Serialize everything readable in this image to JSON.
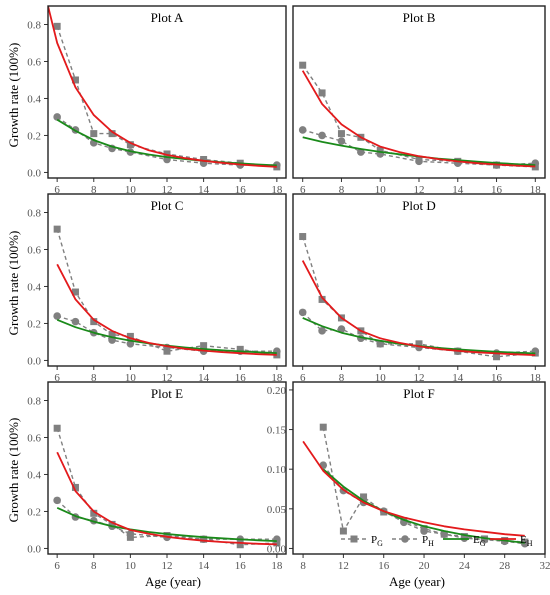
{
  "figure": {
    "ylabel": "Growth rate (100%)",
    "xlabel": "Age (year)"
  },
  "colors": {
    "P_G": "#808080",
    "P_H": "#808080",
    "E_G": "#1a8a1a",
    "E_H": "#e31a1c"
  },
  "legend": {
    "items": [
      {
        "key": "P_G",
        "base": "P",
        "sub": "G",
        "style": "dashed-square"
      },
      {
        "key": "P_H",
        "base": "P",
        "sub": "H",
        "style": "dashed-circle"
      },
      {
        "key": "E_G",
        "base": "E",
        "sub": "G",
        "style": "solid-green"
      },
      {
        "key": "E_H",
        "base": "E",
        "sub": "H",
        "style": "solid-red"
      }
    ]
  },
  "chart_data": [
    {
      "type": "line",
      "title": "Plot A",
      "xlim": [
        5.5,
        18.5
      ],
      "ylim": [
        -0.03,
        0.9
      ],
      "xticks": [
        6,
        8,
        10,
        12,
        14,
        16,
        18
      ],
      "yticks": [
        0.0,
        0.2,
        0.4,
        0.6,
        0.8
      ],
      "ytick_labels": [
        "0.0",
        "0.2",
        "0.4",
        "0.6",
        "0.8"
      ],
      "series": [
        {
          "name": "P_G",
          "x": [
            6,
            7,
            8,
            9,
            10,
            12,
            14,
            16,
            18
          ],
          "y": [
            0.79,
            0.5,
            0.21,
            0.21,
            0.15,
            0.1,
            0.07,
            0.05,
            0.03
          ]
        },
        {
          "name": "P_H",
          "x": [
            6,
            7,
            8,
            9,
            10,
            12,
            14,
            16,
            18
          ],
          "y": [
            0.3,
            0.23,
            0.16,
            0.13,
            0.11,
            0.07,
            0.05,
            0.04,
            0.04
          ]
        },
        {
          "name": "E_G",
          "x": [
            6,
            7,
            8,
            9,
            10,
            11,
            12,
            13,
            14,
            15,
            16,
            17,
            18
          ],
          "y": [
            0.285,
            0.225,
            0.175,
            0.14,
            0.115,
            0.097,
            0.083,
            0.072,
            0.063,
            0.055,
            0.049,
            0.043,
            0.038
          ]
        },
        {
          "name": "E_H",
          "x": [
            5.5,
            6,
            7,
            8,
            9,
            10,
            11,
            12,
            13,
            14,
            15,
            16,
            17,
            18
          ],
          "y": [
            0.9,
            0.7,
            0.46,
            0.31,
            0.22,
            0.16,
            0.12,
            0.095,
            0.077,
            0.063,
            0.052,
            0.043,
            0.036,
            0.03
          ]
        }
      ]
    },
    {
      "type": "line",
      "title": "Plot B",
      "xlim": [
        5.5,
        18.5
      ],
      "ylim": [
        -0.03,
        0.9
      ],
      "xticks": [
        6,
        8,
        10,
        12,
        14,
        16,
        18
      ],
      "yticks": [],
      "ytick_labels": [],
      "series": [
        {
          "name": "P_G",
          "x": [
            6,
            7,
            8,
            9,
            10,
            12,
            14,
            16,
            18
          ],
          "y": [
            0.58,
            0.43,
            0.21,
            0.19,
            0.12,
            0.07,
            0.06,
            0.04,
            0.03
          ]
        },
        {
          "name": "P_H",
          "x": [
            6,
            7,
            8,
            9,
            10,
            12,
            14,
            16,
            18
          ],
          "y": [
            0.23,
            0.2,
            0.17,
            0.11,
            0.1,
            0.06,
            0.05,
            0.04,
            0.05
          ]
        },
        {
          "name": "E_G",
          "x": [
            6,
            7,
            8,
            9,
            10,
            11,
            12,
            13,
            14,
            15,
            16,
            17,
            18
          ],
          "y": [
            0.19,
            0.165,
            0.145,
            0.127,
            0.111,
            0.098,
            0.086,
            0.075,
            0.066,
            0.058,
            0.051,
            0.045,
            0.04
          ]
        },
        {
          "name": "E_H",
          "x": [
            6,
            7,
            8,
            9,
            10,
            11,
            12,
            13,
            14,
            15,
            16,
            17,
            18
          ],
          "y": [
            0.55,
            0.37,
            0.26,
            0.19,
            0.14,
            0.11,
            0.088,
            0.072,
            0.06,
            0.05,
            0.043,
            0.037,
            0.032
          ]
        }
      ]
    },
    {
      "type": "line",
      "title": "Plot C",
      "xlim": [
        5.5,
        18.5
      ],
      "ylim": [
        -0.03,
        0.9
      ],
      "xticks": [
        6,
        8,
        10,
        12,
        14,
        16,
        18
      ],
      "yticks": [
        0.0,
        0.2,
        0.4,
        0.6,
        0.8
      ],
      "ytick_labels": [
        "0.0",
        "0.2",
        "0.4",
        "0.6",
        "0.8"
      ],
      "series": [
        {
          "name": "P_G",
          "x": [
            6,
            7,
            8,
            9,
            10,
            12,
            14,
            16,
            18
          ],
          "y": [
            0.71,
            0.37,
            0.21,
            0.14,
            0.13,
            0.05,
            0.08,
            0.06,
            0.03
          ]
        },
        {
          "name": "P_H",
          "x": [
            6,
            7,
            8,
            9,
            10,
            12,
            14,
            16,
            18
          ],
          "y": [
            0.24,
            0.21,
            0.15,
            0.11,
            0.09,
            0.07,
            0.05,
            0.05,
            0.05
          ]
        },
        {
          "name": "E_G",
          "x": [
            6,
            7,
            8,
            9,
            10,
            11,
            12,
            13,
            14,
            15,
            16,
            17,
            18
          ],
          "y": [
            0.22,
            0.18,
            0.15,
            0.125,
            0.107,
            0.092,
            0.08,
            0.07,
            0.062,
            0.055,
            0.049,
            0.044,
            0.04
          ]
        },
        {
          "name": "E_H",
          "x": [
            6,
            7,
            8,
            9,
            10,
            11,
            12,
            13,
            14,
            15,
            16,
            17,
            18
          ],
          "y": [
            0.52,
            0.33,
            0.22,
            0.16,
            0.12,
            0.095,
            0.077,
            0.063,
            0.053,
            0.045,
            0.039,
            0.034,
            0.03
          ]
        }
      ]
    },
    {
      "type": "line",
      "title": "Plot D",
      "xlim": [
        5.5,
        18.5
      ],
      "ylim": [
        -0.03,
        0.9
      ],
      "xticks": [
        6,
        8,
        10,
        12,
        14,
        16,
        18
      ],
      "yticks": [],
      "ytick_labels": [],
      "series": [
        {
          "name": "P_G",
          "x": [
            6,
            7,
            8,
            9,
            10,
            12,
            14,
            16,
            18
          ],
          "y": [
            0.67,
            0.33,
            0.23,
            0.16,
            0.09,
            0.09,
            0.05,
            0.02,
            0.04
          ]
        },
        {
          "name": "P_H",
          "x": [
            6,
            7,
            8,
            9,
            10,
            12,
            14,
            16,
            18
          ],
          "y": [
            0.26,
            0.16,
            0.17,
            0.12,
            0.09,
            0.07,
            0.05,
            0.04,
            0.05
          ]
        },
        {
          "name": "E_G",
          "x": [
            6,
            7,
            8,
            9,
            10,
            11,
            12,
            13,
            14,
            15,
            16,
            17,
            18
          ],
          "y": [
            0.23,
            0.185,
            0.15,
            0.125,
            0.106,
            0.09,
            0.078,
            0.068,
            0.06,
            0.053,
            0.047,
            0.042,
            0.038
          ]
        },
        {
          "name": "E_H",
          "x": [
            6,
            7,
            8,
            9,
            10,
            11,
            12,
            13,
            14,
            15,
            16,
            17,
            18
          ],
          "y": [
            0.54,
            0.34,
            0.23,
            0.16,
            0.12,
            0.095,
            0.076,
            0.062,
            0.052,
            0.044,
            0.038,
            0.033,
            0.029
          ]
        }
      ]
    },
    {
      "type": "line",
      "title": "Plot E",
      "xlim": [
        5.5,
        18.5
      ],
      "ylim": [
        -0.03,
        0.9
      ],
      "xticks": [
        6,
        8,
        10,
        12,
        14,
        16,
        18
      ],
      "yticks": [
        0.0,
        0.2,
        0.4,
        0.6,
        0.8
      ],
      "ytick_labels": [
        "0.0",
        "0.2",
        "0.4",
        "0.6",
        "0.8"
      ],
      "series": [
        {
          "name": "P_G",
          "x": [
            6,
            7,
            8,
            9,
            10,
            12,
            14,
            16,
            18
          ],
          "y": [
            0.65,
            0.33,
            0.19,
            0.13,
            0.06,
            0.07,
            0.05,
            0.02,
            0.03
          ]
        },
        {
          "name": "P_H",
          "x": [
            6,
            7,
            8,
            9,
            10,
            12,
            14,
            16,
            18
          ],
          "y": [
            0.26,
            0.17,
            0.15,
            0.12,
            0.08,
            0.06,
            0.05,
            0.05,
            0.05
          ]
        },
        {
          "name": "E_G",
          "x": [
            6,
            7,
            8,
            9,
            10,
            11,
            12,
            13,
            14,
            15,
            16,
            17,
            18
          ],
          "y": [
            0.22,
            0.175,
            0.145,
            0.12,
            0.103,
            0.089,
            0.078,
            0.069,
            0.061,
            0.055,
            0.049,
            0.044,
            0.04
          ]
        },
        {
          "name": "E_H",
          "x": [
            6,
            7,
            8,
            9,
            10,
            11,
            12,
            13,
            14,
            15,
            16,
            17,
            18
          ],
          "y": [
            0.52,
            0.31,
            0.2,
            0.14,
            0.1,
            0.08,
            0.063,
            0.051,
            0.042,
            0.035,
            0.03,
            0.025,
            0.022
          ]
        }
      ]
    },
    {
      "type": "line",
      "title": "Plot F",
      "xlim": [
        7,
        32
      ],
      "ylim": [
        -0.007,
        0.21
      ],
      "xticks": [
        8,
        12,
        16,
        20,
        24,
        28,
        32
      ],
      "yticks": [
        0.0,
        0.05,
        0.1,
        0.15,
        0.2
      ],
      "ytick_labels": [
        "0.00",
        "0.05",
        "0.10",
        "0.15",
        "0.20"
      ],
      "series": [
        {
          "name": "P_G",
          "x": [
            10,
            12,
            14,
            16,
            18,
            20,
            22,
            24,
            26,
            28,
            30
          ],
          "y": [
            0.153,
            0.022,
            0.065,
            0.046,
            0.035,
            0.025,
            0.018,
            0.015,
            0.012,
            0.01,
            0.008
          ]
        },
        {
          "name": "P_H",
          "x": [
            10,
            12,
            14,
            16,
            18,
            20,
            22,
            24,
            26,
            28,
            30
          ],
          "y": [
            0.105,
            0.073,
            0.058,
            0.047,
            0.033,
            0.022,
            0.018,
            0.013,
            0.011,
            0.009,
            0.006
          ]
        },
        {
          "name": "E_G",
          "x": [
            10,
            12,
            14,
            16,
            18,
            20,
            22,
            24,
            26,
            28,
            30
          ],
          "y": [
            0.1,
            0.078,
            0.06,
            0.047,
            0.036,
            0.028,
            0.022,
            0.017,
            0.013,
            0.01,
            0.007
          ]
        },
        {
          "name": "E_H",
          "x": [
            8,
            10,
            12,
            14,
            16,
            18,
            20,
            22,
            24,
            26,
            28,
            30
          ],
          "y": [
            0.135,
            0.098,
            0.074,
            0.058,
            0.047,
            0.039,
            0.033,
            0.028,
            0.024,
            0.021,
            0.018,
            0.016
          ]
        }
      ]
    }
  ]
}
